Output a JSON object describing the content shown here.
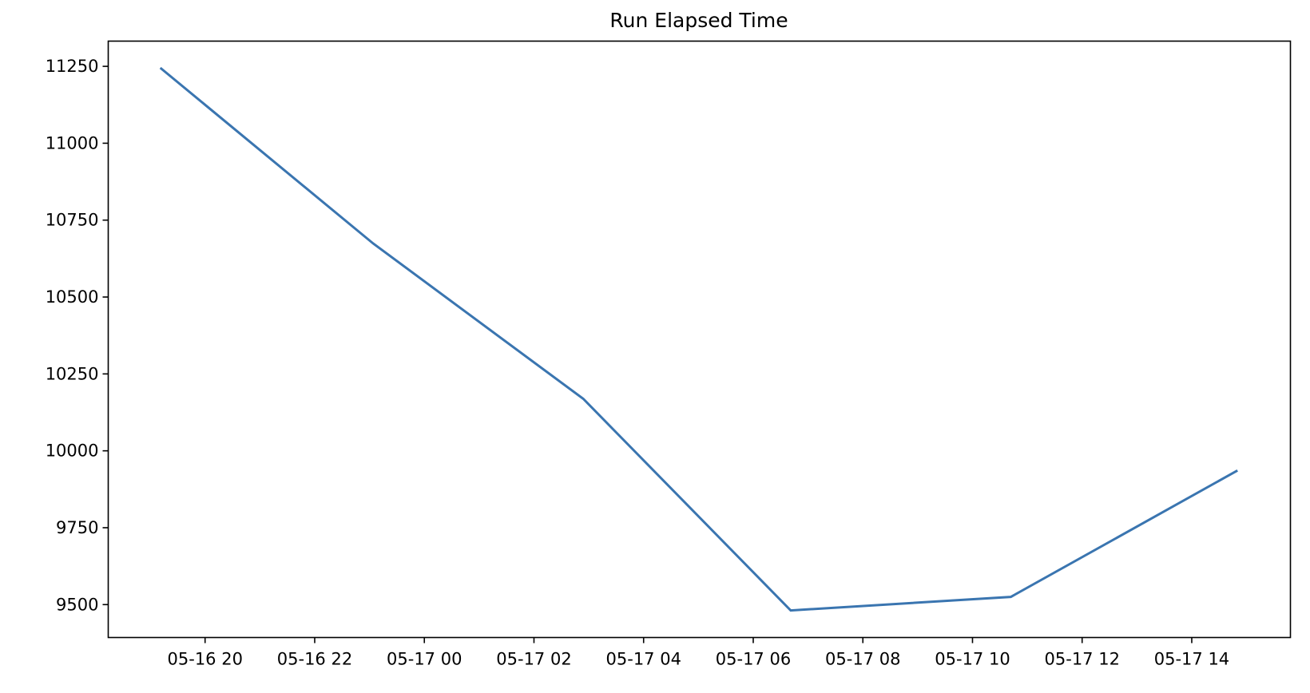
{
  "chart_data": {
    "type": "line",
    "title": "Run Elapsed Time",
    "xlabel": "",
    "ylabel": "",
    "x": [
      "2024-05-16T19:11",
      "2024-05-16T23:04",
      "2024-05-17T02:54",
      "2024-05-17T06:41",
      "2024-05-17T10:42",
      "2024-05-17T14:50"
    ],
    "series": [
      {
        "values": [
          11245,
          10674,
          10169,
          9481,
          9525,
          9936
        ],
        "color": "#3a75b0"
      }
    ],
    "xlim": [
      "2024-05-16T18:14",
      "2024-05-17T15:48"
    ],
    "ylim": [
      9393,
      11332
    ],
    "xticks": [
      "2024-05-16T20:00",
      "2024-05-16T22:00",
      "2024-05-17T00:00",
      "2024-05-17T02:00",
      "2024-05-17T04:00",
      "2024-05-17T06:00",
      "2024-05-17T08:00",
      "2024-05-17T10:00",
      "2024-05-17T12:00",
      "2024-05-17T14:00"
    ],
    "xtick_labels": [
      "05-16 20",
      "05-16 22",
      "05-17 00",
      "05-17 02",
      "05-17 04",
      "05-17 06",
      "05-17 08",
      "05-17 10",
      "05-17 12",
      "05-17 14"
    ],
    "yticks": [
      9500,
      9750,
      10000,
      10250,
      10500,
      10750,
      11000,
      11250
    ],
    "ytick_labels": [
      "9500",
      "9750",
      "10000",
      "10250",
      "10500",
      "10750",
      "11000",
      "11250"
    ],
    "grid": false,
    "legend": "none"
  }
}
